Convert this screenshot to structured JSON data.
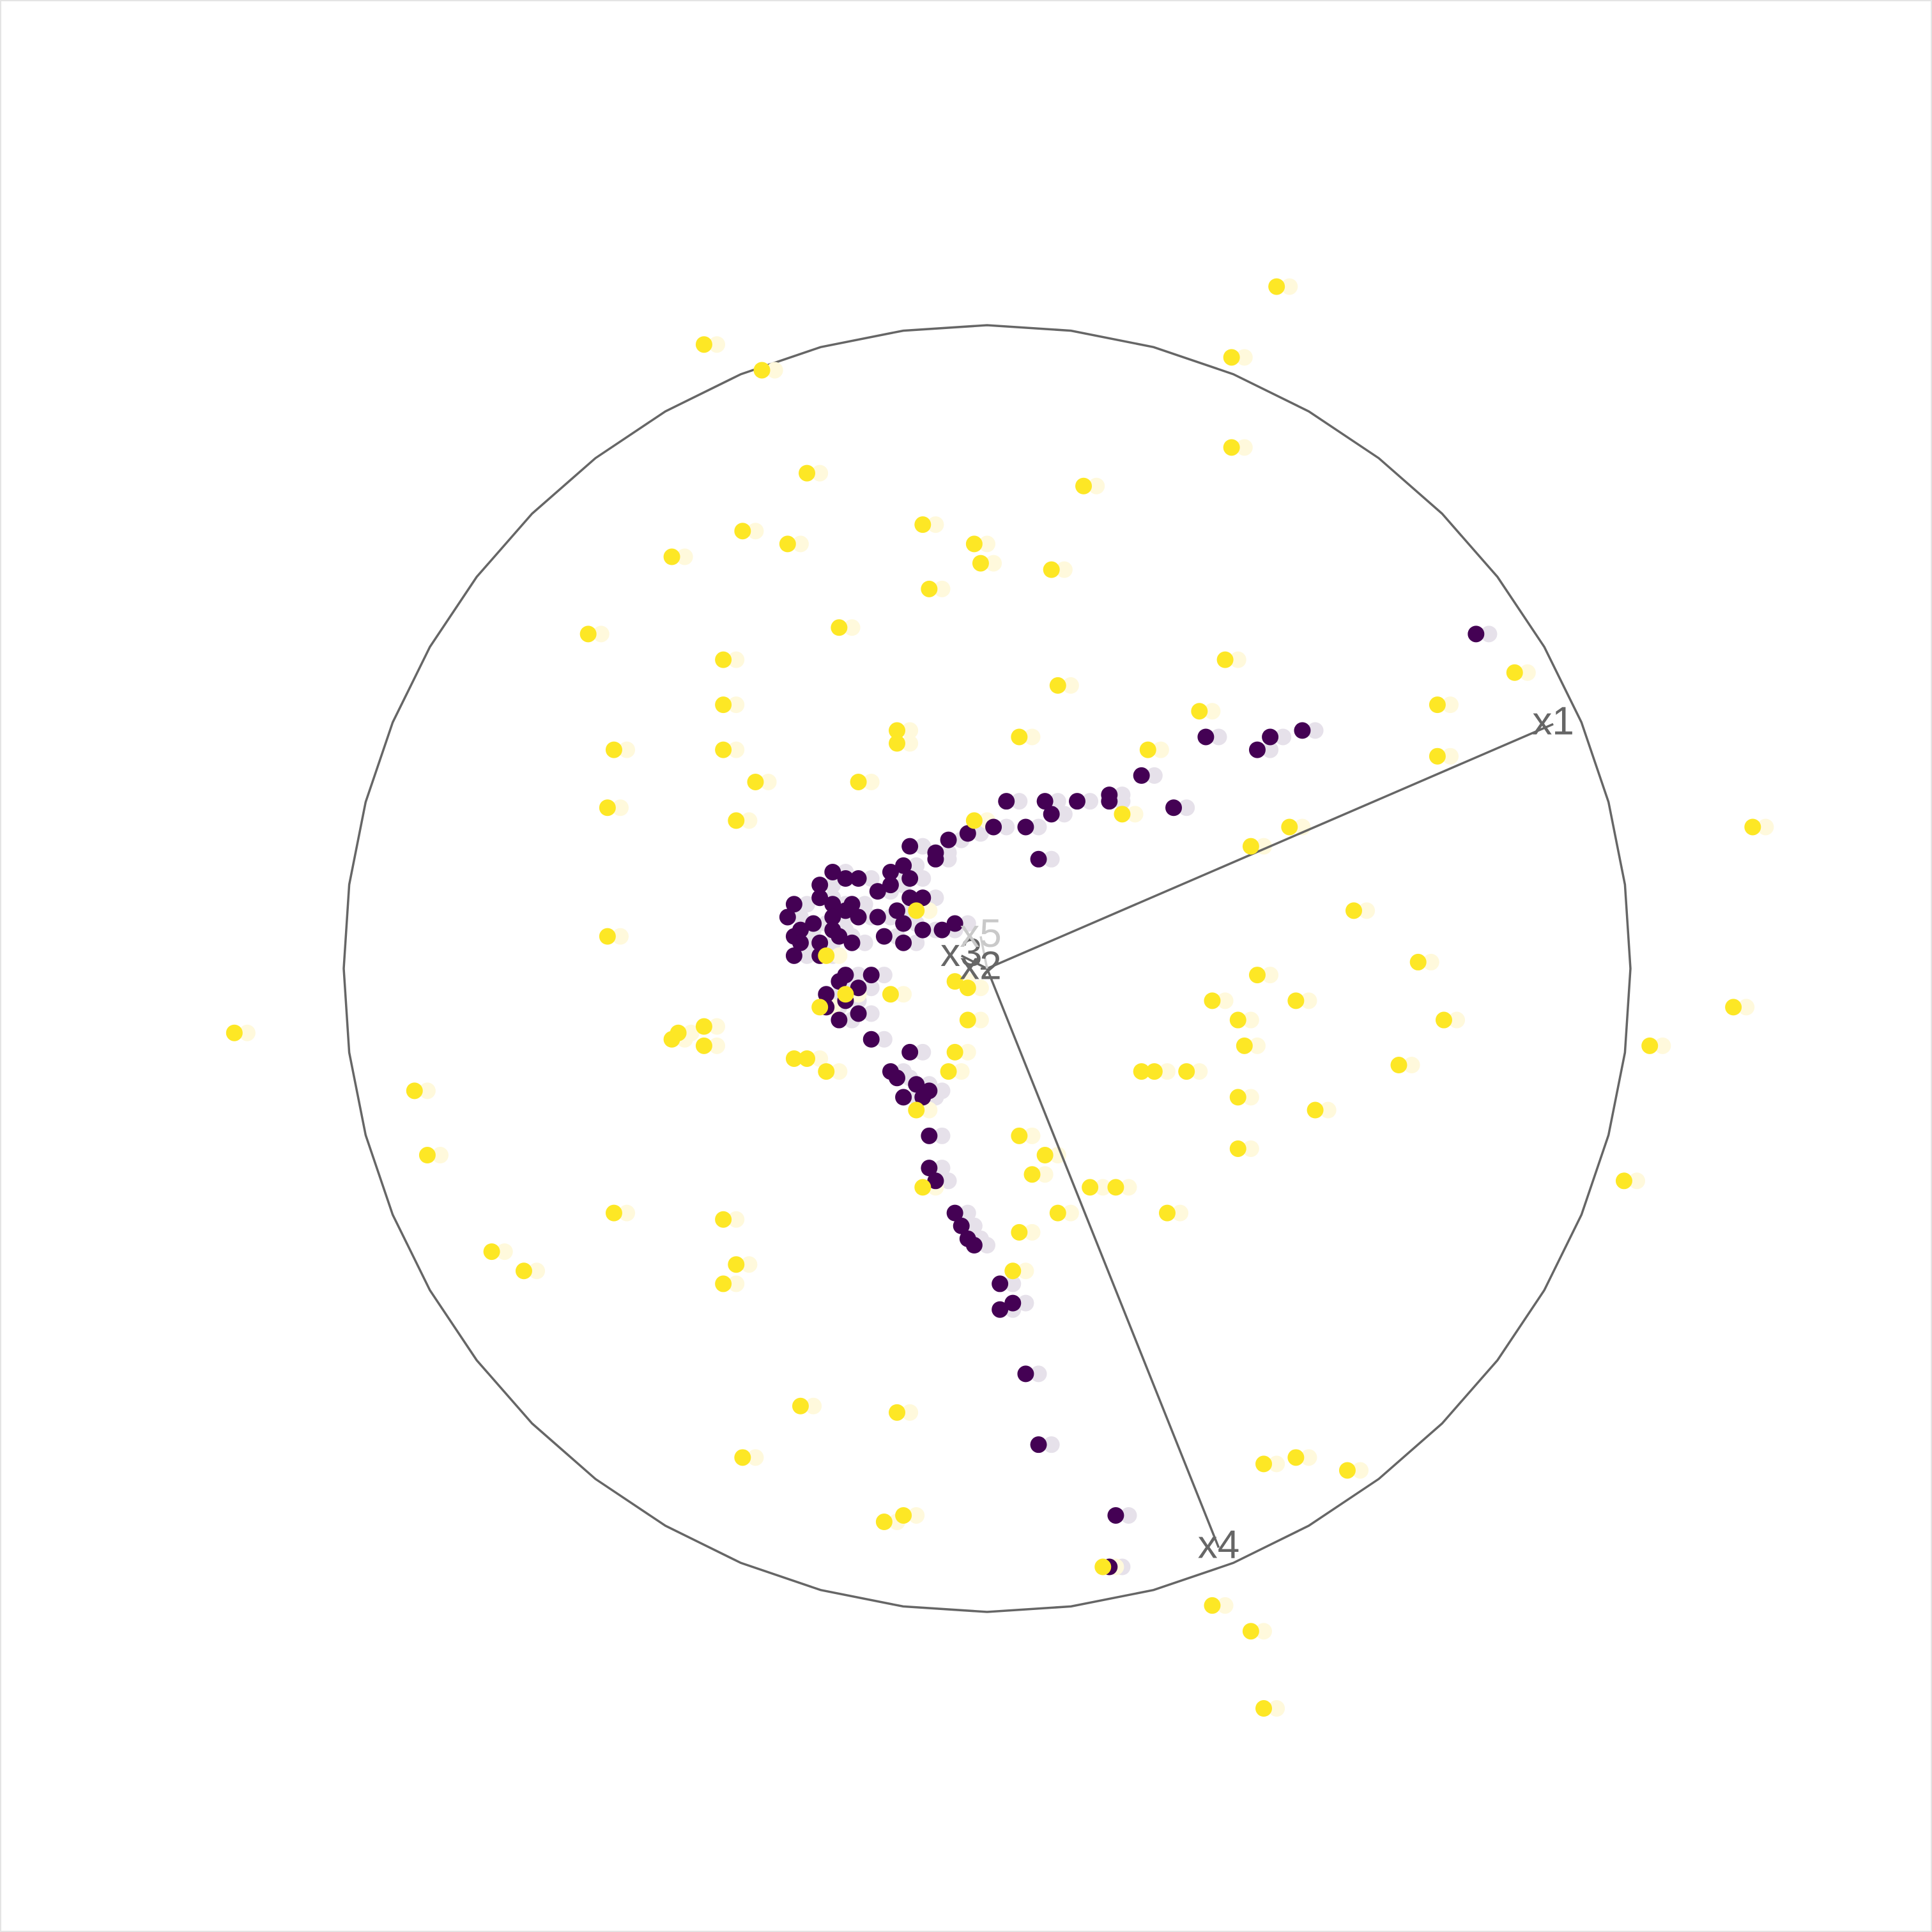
{
  "chart_data": {
    "type": "scatter",
    "title": "",
    "xlabel": "",
    "ylabel": "",
    "grid": false,
    "legend": "none",
    "xlim": [
      -1.5,
      1.5
    ],
    "ylim": [
      -1.5,
      1.5
    ],
    "circle": {
      "radius": 1.0,
      "color": "#666666"
    },
    "axes": [
      {
        "label": "x1",
        "x": 0.88,
        "y": 0.38,
        "faint": false
      },
      {
        "label": "x2",
        "x": -0.01,
        "y": 0.0,
        "faint": false
      },
      {
        "label": "x3",
        "x": -0.04,
        "y": 0.02,
        "faint": false
      },
      {
        "label": "x4",
        "x": 0.36,
        "y": -0.9,
        "faint": false
      },
      {
        "label": "x5",
        "x": -0.01,
        "y": 0.05,
        "faint": true
      }
    ],
    "colors": {
      "class_0": "#440154",
      "class_1": "#fde725",
      "ghost_0": "#e6e1ea",
      "ghost_1": "#fff9dc"
    },
    "ghost_offset": [
      0.02,
      0.0
    ],
    "series": [
      {
        "class": "class_0",
        "points": [
          [
            0.76,
            0.52
          ],
          [
            0.42,
            0.34
          ],
          [
            0.44,
            0.36
          ],
          [
            0.49,
            0.37
          ],
          [
            0.34,
            0.36
          ],
          [
            0.24,
            0.3
          ],
          [
            0.29,
            0.25
          ],
          [
            0.19,
            0.27
          ],
          [
            0.19,
            0.26
          ],
          [
            0.14,
            0.26
          ],
          [
            0.03,
            0.26
          ],
          [
            0.09,
            0.26
          ],
          [
            0.1,
            0.24
          ],
          [
            0.01,
            0.22
          ],
          [
            0.06,
            0.22
          ],
          [
            0.08,
            0.17
          ],
          [
            -0.03,
            0.21
          ],
          [
            -0.06,
            0.2
          ],
          [
            -0.08,
            0.17
          ],
          [
            -0.12,
            0.19
          ],
          [
            -0.08,
            0.18
          ],
          [
            -0.13,
            0.16
          ],
          [
            -0.15,
            0.15
          ],
          [
            -0.12,
            0.14
          ],
          [
            -0.15,
            0.13
          ],
          [
            -0.17,
            0.12
          ],
          [
            -0.2,
            0.14
          ],
          [
            -0.22,
            0.14
          ],
          [
            -0.24,
            0.15
          ],
          [
            -0.26,
            0.13
          ],
          [
            -0.26,
            0.11
          ],
          [
            -0.24,
            0.1
          ],
          [
            -0.21,
            0.1
          ],
          [
            -0.17,
            0.08
          ],
          [
            -0.14,
            0.09
          ],
          [
            -0.12,
            0.11
          ],
          [
            -0.1,
            0.11
          ],
          [
            -0.13,
            0.07
          ],
          [
            -0.1,
            0.06
          ],
          [
            -0.07,
            0.06
          ],
          [
            -0.05,
            0.07
          ],
          [
            -0.13,
            0.04
          ],
          [
            -0.16,
            0.05
          ],
          [
            -0.2,
            0.08
          ],
          [
            -0.22,
            0.09
          ],
          [
            -0.24,
            0.08
          ],
          [
            -0.24,
            0.06
          ],
          [
            -0.27,
            0.07
          ],
          [
            -0.3,
            0.1
          ],
          [
            -0.26,
            0.04
          ],
          [
            -0.23,
            0.05
          ],
          [
            -0.21,
            0.04
          ],
          [
            -0.26,
            0.02
          ],
          [
            -0.29,
            0.06
          ],
          [
            -0.3,
            0.05
          ],
          [
            -0.31,
            0.08
          ],
          [
            -0.29,
            0.04
          ],
          [
            -0.3,
            0.02
          ],
          [
            -0.22,
            -0.01
          ],
          [
            -0.23,
            -0.02
          ],
          [
            -0.18,
            -0.01
          ],
          [
            -0.25,
            -0.04
          ],
          [
            -0.2,
            -0.03
          ],
          [
            -0.22,
            -0.05
          ],
          [
            -0.23,
            -0.08
          ],
          [
            -0.25,
            -0.06
          ],
          [
            -0.2,
            -0.07
          ],
          [
            -0.18,
            -0.11
          ],
          [
            -0.12,
            -0.13
          ],
          [
            -0.15,
            -0.16
          ],
          [
            -0.14,
            -0.17
          ],
          [
            -0.13,
            -0.2
          ],
          [
            -0.11,
            -0.18
          ],
          [
            -0.1,
            -0.2
          ],
          [
            -0.09,
            -0.19
          ],
          [
            -0.09,
            -0.26
          ],
          [
            -0.09,
            -0.31
          ],
          [
            -0.08,
            -0.33
          ],
          [
            -0.05,
            -0.38
          ],
          [
            -0.04,
            -0.4
          ],
          [
            -0.03,
            -0.42
          ],
          [
            -0.02,
            -0.43
          ],
          [
            0.02,
            -0.49
          ],
          [
            0.02,
            -0.53
          ],
          [
            0.04,
            -0.52
          ],
          [
            0.06,
            -0.63
          ],
          [
            0.08,
            -0.74
          ],
          [
            0.19,
            -0.93
          ],
          [
            0.2,
            -0.85
          ]
        ]
      },
      {
        "class": "class_1",
        "points": [
          [
            -0.44,
            0.97
          ],
          [
            -0.35,
            0.93
          ],
          [
            -0.28,
            0.77
          ],
          [
            -0.38,
            0.68
          ],
          [
            -0.31,
            0.66
          ],
          [
            -0.49,
            0.64
          ],
          [
            -0.62,
            0.52
          ],
          [
            -0.41,
            0.48
          ],
          [
            -0.23,
            0.53
          ],
          [
            -0.09,
            0.59
          ],
          [
            -0.1,
            0.69
          ],
          [
            -0.02,
            0.66
          ],
          [
            -0.01,
            0.63
          ],
          [
            0.1,
            0.62
          ],
          [
            0.15,
            0.75
          ],
          [
            0.38,
            0.81
          ],
          [
            0.38,
            0.95
          ],
          [
            0.45,
            1.06
          ],
          [
            -0.14,
            0.37
          ],
          [
            -0.41,
            0.41
          ],
          [
            -0.41,
            0.34
          ],
          [
            -0.58,
            0.34
          ],
          [
            -0.59,
            0.25
          ],
          [
            -0.36,
            0.29
          ],
          [
            -0.39,
            0.23
          ],
          [
            -0.2,
            0.29
          ],
          [
            -0.14,
            0.35
          ],
          [
            0.11,
            0.44
          ],
          [
            0.05,
            0.36
          ],
          [
            -0.02,
            0.23
          ],
          [
            0.25,
            0.34
          ],
          [
            0.37,
            0.48
          ],
          [
            0.33,
            0.4
          ],
          [
            0.21,
            0.24
          ],
          [
            0.41,
            0.19
          ],
          [
            0.47,
            0.22
          ],
          [
            0.7,
            0.41
          ],
          [
            0.82,
            0.46
          ],
          [
            0.7,
            0.33
          ],
          [
            0.57,
            0.09
          ],
          [
            0.67,
            0.01
          ],
          [
            0.35,
            -0.05
          ],
          [
            0.4,
            -0.12
          ],
          [
            0.42,
            -0.01
          ],
          [
            0.39,
            -0.08
          ],
          [
            0.48,
            -0.05
          ],
          [
            0.64,
            -0.15
          ],
          [
            0.71,
            -0.08
          ],
          [
            0.51,
            -0.22
          ],
          [
            1.19,
            0.22
          ],
          [
            1.16,
            -0.06
          ],
          [
            1.03,
            -0.12
          ],
          [
            0.99,
            -0.33
          ],
          [
            -0.11,
            0.09
          ],
          [
            -0.05,
            -0.02
          ],
          [
            -0.03,
            -0.03
          ],
          [
            -0.03,
            -0.08
          ],
          [
            -0.05,
            -0.13
          ],
          [
            -0.06,
            -0.16
          ],
          [
            -0.15,
            -0.04
          ],
          [
            -0.22,
            -0.04
          ],
          [
            -0.26,
            -0.06
          ],
          [
            -0.28,
            -0.14
          ],
          [
            -0.25,
            -0.16
          ],
          [
            -0.3,
            -0.14
          ],
          [
            -0.44,
            -0.09
          ],
          [
            -0.48,
            -0.1
          ],
          [
            -0.44,
            -0.12
          ],
          [
            -0.49,
            -0.11
          ],
          [
            -0.25,
            0.02
          ],
          [
            -0.59,
            0.05
          ],
          [
            -1.17,
            -0.1
          ],
          [
            -0.89,
            -0.19
          ],
          [
            -0.87,
            -0.29
          ],
          [
            -0.58,
            -0.38
          ],
          [
            -0.41,
            -0.39
          ],
          [
            -0.39,
            -0.46
          ],
          [
            -0.77,
            -0.44
          ],
          [
            -0.72,
            -0.47
          ],
          [
            -0.41,
            -0.49
          ],
          [
            -0.11,
            -0.22
          ],
          [
            0.05,
            -0.26
          ],
          [
            0.09,
            -0.29
          ],
          [
            0.07,
            -0.32
          ],
          [
            0.05,
            -0.41
          ],
          [
            0.11,
            -0.38
          ],
          [
            0.2,
            -0.34
          ],
          [
            0.28,
            -0.38
          ],
          [
            0.24,
            -0.16
          ],
          [
            0.31,
            -0.16
          ],
          [
            0.16,
            -0.34
          ],
          [
            0.26,
            -0.16
          ],
          [
            0.39,
            -0.2
          ],
          [
            0.39,
            -0.28
          ],
          [
            -0.1,
            -0.34
          ],
          [
            0.04,
            -0.47
          ],
          [
            -0.14,
            -0.69
          ],
          [
            -0.29,
            -0.68
          ],
          [
            -0.38,
            -0.76
          ],
          [
            -0.16,
            -0.86
          ],
          [
            -0.13,
            -0.85
          ],
          [
            0.18,
            -0.93
          ],
          [
            0.35,
            -0.99
          ],
          [
            0.43,
            -0.77
          ],
          [
            0.56,
            -0.78
          ],
          [
            0.41,
            -1.03
          ],
          [
            0.43,
            -1.15
          ],
          [
            0.48,
            -0.76
          ]
        ]
      }
    ]
  }
}
